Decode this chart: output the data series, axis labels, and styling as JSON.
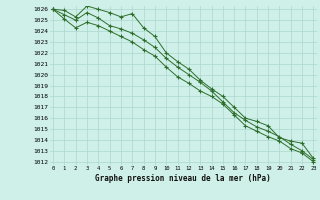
{
  "title": "Graphe pression niveau de la mer (hPa)",
  "background_color": "#cff0e8",
  "grid_color": "#aad8cc",
  "line_color": "#2d6e2d",
  "marker_color": "#2d6e2d",
  "ylim_min": 1012,
  "ylim_max": 1026,
  "xlim_min": 0,
  "xlim_max": 23,
  "yticks": [
    1012,
    1013,
    1014,
    1015,
    1016,
    1017,
    1018,
    1019,
    1020,
    1021,
    1022,
    1023,
    1024,
    1025,
    1026
  ],
  "xticks": [
    0,
    1,
    2,
    3,
    4,
    5,
    6,
    7,
    8,
    9,
    10,
    11,
    12,
    13,
    14,
    15,
    16,
    17,
    18,
    19,
    20,
    21,
    22,
    23
  ],
  "line1": [
    1026.0,
    1025.9,
    1025.3,
    1026.3,
    1026.0,
    1025.7,
    1025.3,
    1025.6,
    1024.3,
    1023.5,
    1022.0,
    1021.2,
    1020.5,
    1019.5,
    1018.7,
    1018.0,
    1017.0,
    1016.0,
    1015.7,
    1015.3,
    1014.2,
    1013.9,
    1013.7,
    1012.3
  ],
  "line2": [
    1026.0,
    1025.5,
    1025.0,
    1025.7,
    1025.2,
    1024.5,
    1024.2,
    1023.8,
    1023.2,
    1022.5,
    1021.5,
    1020.7,
    1020.0,
    1019.3,
    1018.5,
    1017.5,
    1016.5,
    1015.8,
    1015.2,
    1014.8,
    1014.3,
    1013.6,
    1013.0,
    1012.2
  ],
  "line3": [
    1026.0,
    1025.1,
    1024.3,
    1024.8,
    1024.5,
    1024.0,
    1023.5,
    1023.0,
    1022.3,
    1021.7,
    1020.7,
    1019.8,
    1019.2,
    1018.5,
    1018.0,
    1017.3,
    1016.3,
    1015.3,
    1014.8,
    1014.3,
    1013.9,
    1013.2,
    1012.8,
    1012.0
  ],
  "title_fontsize": 5.5,
  "tick_fontsize": 4.5,
  "xtick_fontsize": 4.0,
  "linewidth": 0.7,
  "markersize": 2.5
}
